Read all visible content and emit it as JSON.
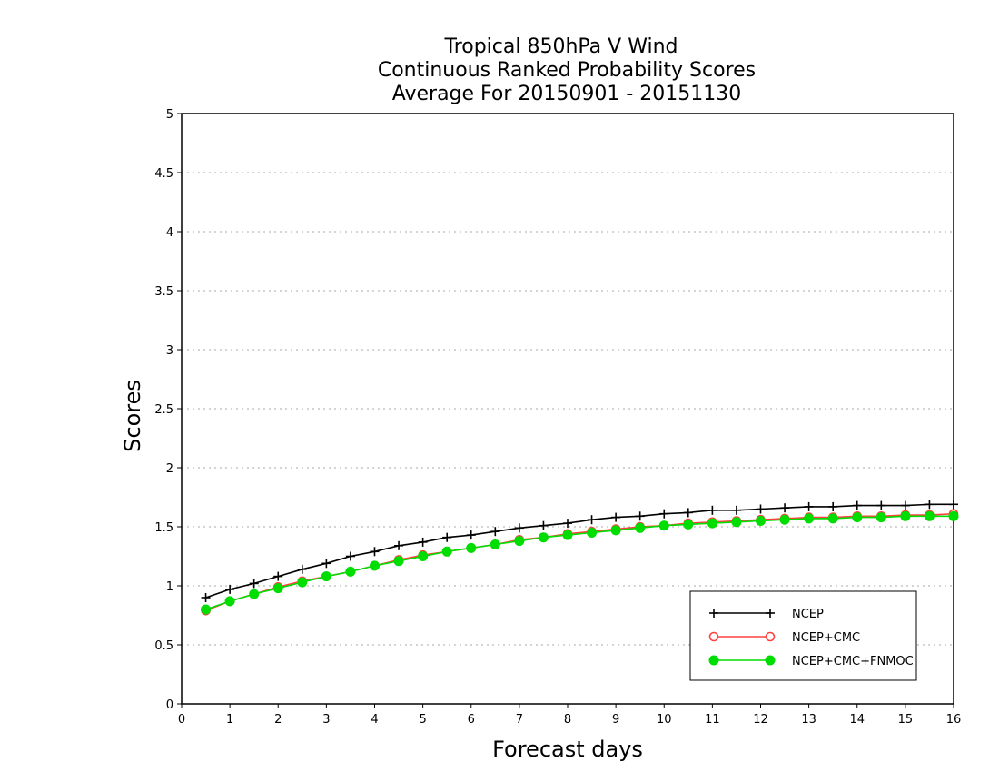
{
  "chart_data": {
    "type": "line",
    "title": [
      "Tropical 850hPa V Wind",
      "Continuous Ranked Probability Scores",
      "Average For 20150901 - 20151130"
    ],
    "xlabel": "Forecast days",
    "ylabel": "Scores",
    "xlim": [
      0,
      16
    ],
    "ylim": [
      0,
      5
    ],
    "x_ticks": [
      "0",
      "1",
      "2",
      "3",
      "4",
      "5",
      "6",
      "7",
      "8",
      "9",
      "10",
      "11",
      "12",
      "13",
      "14",
      "15",
      "16"
    ],
    "y_ticks": [
      "0",
      "0.5",
      "1",
      "1.5",
      "2",
      "2.5",
      "3",
      "3.5",
      "4",
      "4.5",
      "5"
    ],
    "grid": true,
    "legend_position": "bottom-right",
    "x": [
      0.5,
      1,
      1.5,
      2,
      2.5,
      3,
      3.5,
      4,
      4.5,
      5,
      5.5,
      6,
      6.5,
      7,
      7.5,
      8,
      8.5,
      9,
      9.5,
      10,
      10.5,
      11,
      11.5,
      12,
      12.5,
      13,
      13.5,
      14,
      14.5,
      15,
      15.5,
      16
    ],
    "series": [
      {
        "name": "NCEP",
        "color": "#000000",
        "marker": "plus",
        "values": [
          0.9,
          0.97,
          1.02,
          1.08,
          1.14,
          1.19,
          1.25,
          1.29,
          1.34,
          1.37,
          1.41,
          1.43,
          1.46,
          1.49,
          1.51,
          1.53,
          1.56,
          1.58,
          1.59,
          1.61,
          1.62,
          1.64,
          1.64,
          1.65,
          1.66,
          1.67,
          1.67,
          1.68,
          1.68,
          1.68,
          1.69,
          1.69
        ]
      },
      {
        "name": "NCEP+CMC",
        "color": "#ff4040",
        "marker": "open-circle",
        "values": [
          0.79,
          0.87,
          0.93,
          0.99,
          1.04,
          1.08,
          1.12,
          1.17,
          1.22,
          1.26,
          1.29,
          1.32,
          1.35,
          1.39,
          1.41,
          1.44,
          1.46,
          1.48,
          1.5,
          1.51,
          1.53,
          1.54,
          1.55,
          1.56,
          1.57,
          1.58,
          1.58,
          1.59,
          1.59,
          1.6,
          1.6,
          1.61
        ]
      },
      {
        "name": "NCEP+CMC+FNMOC",
        "color": "#00dd00",
        "marker": "filled-circle",
        "values": [
          0.8,
          0.87,
          0.93,
          0.98,
          1.03,
          1.08,
          1.12,
          1.17,
          1.21,
          1.25,
          1.29,
          1.32,
          1.35,
          1.38,
          1.41,
          1.43,
          1.45,
          1.47,
          1.49,
          1.51,
          1.52,
          1.53,
          1.54,
          1.55,
          1.56,
          1.57,
          1.57,
          1.58,
          1.58,
          1.59,
          1.59,
          1.59
        ]
      }
    ]
  }
}
